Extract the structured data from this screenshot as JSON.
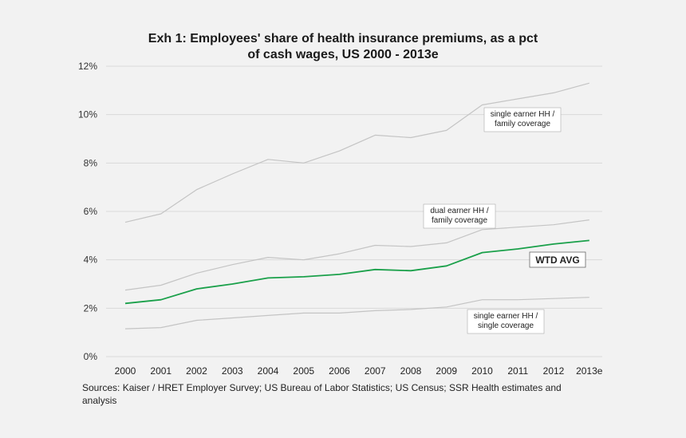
{
  "chart_data": {
    "type": "line",
    "title_line1": "Exh 1: Employees' share of health insurance premiums, as a pct",
    "title_line2": "of cash wages, US 2000 - 2013e",
    "categories": [
      "2000",
      "2001",
      "2002",
      "2003",
      "2004",
      "2005",
      "2006",
      "2007",
      "2008",
      "2009",
      "2010",
      "2011",
      "2012",
      "2013e"
    ],
    "ylim": [
      0,
      12
    ],
    "yticks": [
      0,
      2,
      4,
      6,
      8,
      10,
      12
    ],
    "ytick_labels": [
      "0%",
      "2%",
      "4%",
      "6%",
      "8%",
      "10%",
      "12%"
    ],
    "grid": true,
    "series": [
      {
        "name": "single earner HH / family coverage",
        "label_lines": [
          "single earner HH /",
          "family coverage"
        ],
        "color": "#c4c4c4",
        "values": [
          5.55,
          5.9,
          6.9,
          7.55,
          8.15,
          8.0,
          8.5,
          9.15,
          9.05,
          9.35,
          10.4,
          10.65,
          10.9,
          11.3
        ]
      },
      {
        "name": "dual earner HH / family coverage",
        "label_lines": [
          "dual earner HH /",
          "family coverage"
        ],
        "color": "#c4c4c4",
        "values": [
          2.75,
          2.95,
          3.45,
          3.8,
          4.1,
          4.0,
          4.25,
          4.6,
          4.55,
          4.7,
          5.25,
          5.35,
          5.45,
          5.65
        ]
      },
      {
        "name": "WTD AVG",
        "label_lines": [
          "WTD AVG"
        ],
        "color": "#1aa04a",
        "values": [
          2.2,
          2.35,
          2.8,
          3.0,
          3.25,
          3.3,
          3.4,
          3.6,
          3.55,
          3.75,
          4.3,
          4.45,
          4.65,
          4.8
        ]
      },
      {
        "name": "single earner HH / single coverage",
        "label_lines": [
          "single earner HH /",
          "single coverage"
        ],
        "color": "#c4c4c4",
        "values": [
          1.15,
          1.2,
          1.5,
          1.6,
          1.7,
          1.8,
          1.8,
          1.9,
          1.95,
          2.05,
          2.35,
          2.35,
          2.4,
          2.45
        ]
      }
    ]
  },
  "source_text": "Sources: Kaiser / HRET Employer Survey; US Bureau of Labor Statistics; US Census; SSR Health estimates and analysis"
}
